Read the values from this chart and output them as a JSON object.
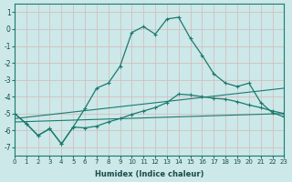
{
  "xlabel": "Humidex (Indice chaleur)",
  "bg_color": "#cce8e8",
  "grid_color": "#d4b8b8",
  "line_color": "#1a7a6e",
  "xlim": [
    0,
    23
  ],
  "ylim": [
    -7.5,
    1.5
  ],
  "yticks": [
    1,
    0,
    -1,
    -2,
    -3,
    -4,
    -5,
    -6,
    -7
  ],
  "xticks": [
    0,
    1,
    2,
    3,
    4,
    5,
    6,
    7,
    8,
    9,
    10,
    11,
    12,
    13,
    14,
    15,
    16,
    17,
    18,
    19,
    20,
    21,
    22,
    23
  ],
  "curve1_x": [
    0,
    1,
    2,
    3,
    4,
    5,
    6,
    7,
    8,
    9,
    10,
    11,
    12,
    13,
    14,
    15,
    16,
    17,
    18,
    19,
    20,
    21,
    22,
    23
  ],
  "curve1_y": [
    -5.0,
    -5.6,
    -6.3,
    -5.9,
    -6.8,
    -5.8,
    -4.7,
    -3.5,
    -3.2,
    -2.2,
    -0.2,
    0.15,
    -0.3,
    0.6,
    0.7,
    -0.55,
    -1.55,
    -2.65,
    -3.2,
    -3.4,
    -3.2,
    -4.35,
    -4.95,
    -5.2
  ],
  "curve2_x": [
    0,
    1,
    2,
    3,
    4,
    5,
    6,
    7,
    8,
    9,
    10,
    11,
    12,
    13,
    14,
    15,
    16,
    17,
    18,
    19,
    20,
    21,
    22,
    23
  ],
  "curve2_y": [
    -5.0,
    -5.6,
    -6.3,
    -5.9,
    -6.8,
    -5.8,
    -5.85,
    -5.75,
    -5.5,
    -5.3,
    -5.05,
    -4.85,
    -4.65,
    -4.35,
    -3.85,
    -3.9,
    -4.0,
    -4.1,
    -4.15,
    -4.3,
    -4.5,
    -4.65,
    -4.85,
    -5.0
  ],
  "line1_x": [
    0,
    23
  ],
  "line1_y": [
    -5.3,
    -3.5
  ],
  "line2_x": [
    0,
    23
  ],
  "line2_y": [
    -5.5,
    -5.0
  ]
}
